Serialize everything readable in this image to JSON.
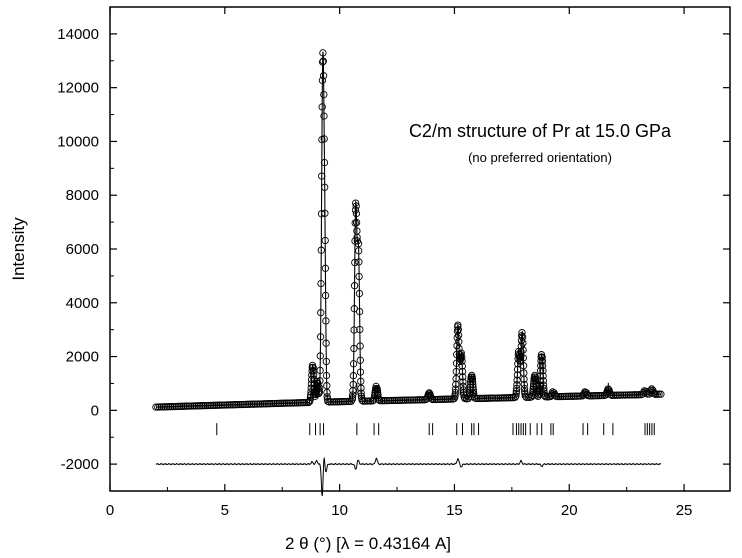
{
  "chart_data": {
    "type": "scatter",
    "title": "",
    "annotation": "C2/m structure of Pr at 15.0 GPa",
    "annotation_sub": "(no preferred orientation)",
    "xlabel": "2 θ (°) [λ = 0.43164 A]",
    "ylabel": "Intensity",
    "xlim": [
      0,
      27
    ],
    "ylim": [
      -3000,
      15000
    ],
    "x_ticks": [
      0,
      5,
      10,
      15,
      20,
      25
    ],
    "y_ticks": [
      -2000,
      0,
      2000,
      4000,
      6000,
      8000,
      10000,
      12000,
      14000
    ],
    "x_tick_labels": [
      "0",
      "5",
      "10",
      "15",
      "20",
      "25"
    ],
    "y_tick_labels": [
      "-2000",
      "0",
      "2000",
      "4000",
      "6000",
      "8000",
      "10000",
      "12000",
      "14000"
    ],
    "grid": false,
    "series": [
      {
        "kind": "observed",
        "marker": "open-circle",
        "background": [
          [
            2.0,
            120
          ],
          [
            9.0,
            300
          ],
          [
            24.0,
            600
          ]
        ],
        "peaks": [
          {
            "x": 8.83,
            "y": 1700,
            "w": 0.05
          },
          {
            "x": 9.03,
            "y": 1100,
            "w": 0.04
          },
          {
            "x": 9.27,
            "y": 13000,
            "w": 0.055
          },
          {
            "x": 9.36,
            "y": 4000,
            "w": 0.04
          },
          {
            "x": 10.7,
            "y": 7400,
            "w": 0.05
          },
          {
            "x": 10.82,
            "y": 5800,
            "w": 0.05
          },
          {
            "x": 11.6,
            "y": 900,
            "w": 0.05
          },
          {
            "x": 13.9,
            "y": 650,
            "w": 0.05
          },
          {
            "x": 15.15,
            "y": 3150,
            "w": 0.05
          },
          {
            "x": 15.3,
            "y": 2100,
            "w": 0.05
          },
          {
            "x": 15.75,
            "y": 1300,
            "w": 0.05
          },
          {
            "x": 17.8,
            "y": 2200,
            "w": 0.05
          },
          {
            "x": 17.95,
            "y": 2900,
            "w": 0.05
          },
          {
            "x": 18.5,
            "y": 1300,
            "w": 0.05
          },
          {
            "x": 18.8,
            "y": 2100,
            "w": 0.05
          },
          {
            "x": 19.3,
            "y": 700,
            "w": 0.05
          },
          {
            "x": 20.7,
            "y": 700,
            "w": 0.05
          },
          {
            "x": 21.7,
            "y": 800,
            "w": 0.05
          },
          {
            "x": 23.3,
            "y": 750,
            "w": 0.05
          },
          {
            "x": 23.6,
            "y": 800,
            "w": 0.05
          },
          {
            "x": 24.0,
            "y": 600,
            "w": 0.05
          }
        ]
      },
      {
        "kind": "calculated",
        "style": "line"
      },
      {
        "kind": "reflections",
        "rows": [
          {
            "y": 800,
            "x": [
              10.75,
              15.25,
              18.75,
              21.7
            ]
          },
          {
            "y": -700,
            "x": [
              4.65,
              8.7,
              8.95,
              9.15,
              9.3,
              10.75,
              11.5,
              11.7,
              13.9,
              14.05,
              15.1,
              15.35,
              15.75,
              15.85,
              16.05,
              17.55,
              17.7,
              17.8,
              17.9,
              18.0,
              18.1,
              18.3,
              18.6,
              18.8,
              19.2,
              19.3,
              20.6,
              20.8,
              21.5,
              21.9,
              23.3,
              23.4,
              23.5,
              23.6,
              23.7
            ]
          }
        ]
      },
      {
        "kind": "difference",
        "offset": -2000,
        "x_range": [
          2.0,
          24.0
        ],
        "features": [
          [
            8.8,
            80
          ],
          [
            9.0,
            120
          ],
          [
            9.25,
            -1400
          ],
          [
            9.3,
            600
          ],
          [
            9.4,
            -300
          ],
          [
            10.7,
            -200
          ],
          [
            10.8,
            150
          ],
          [
            11.6,
            220
          ],
          [
            15.15,
            200
          ],
          [
            15.3,
            -100
          ],
          [
            17.9,
            120
          ],
          [
            18.8,
            -80
          ]
        ]
      }
    ]
  }
}
